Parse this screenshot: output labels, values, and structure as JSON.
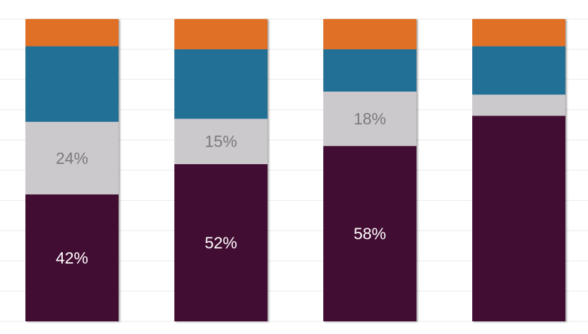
{
  "chart_data": {
    "type": "bar",
    "stacked": true,
    "normalized": true,
    "bars": 4,
    "ylim": [
      0,
      100
    ],
    "grid": true,
    "series": [
      {
        "color": "#420C33",
        "values": [
          42,
          52,
          58,
          68
        ],
        "labels": [
          "42%",
          "52%",
          "58%",
          ""
        ]
      },
      {
        "color": "#CCC9CC",
        "values": [
          24,
          15,
          18,
          7
        ],
        "labels": [
          "24%",
          "15%",
          "18%",
          ""
        ]
      },
      {
        "color": "#216F95",
        "values": [
          25,
          23,
          14,
          16
        ],
        "labels": [
          "",
          "",
          "",
          ""
        ]
      },
      {
        "color": "#E06F27",
        "values": [
          9,
          10,
          10,
          9
        ],
        "labels": [
          "",
          "",
          "",
          ""
        ]
      }
    ]
  }
}
